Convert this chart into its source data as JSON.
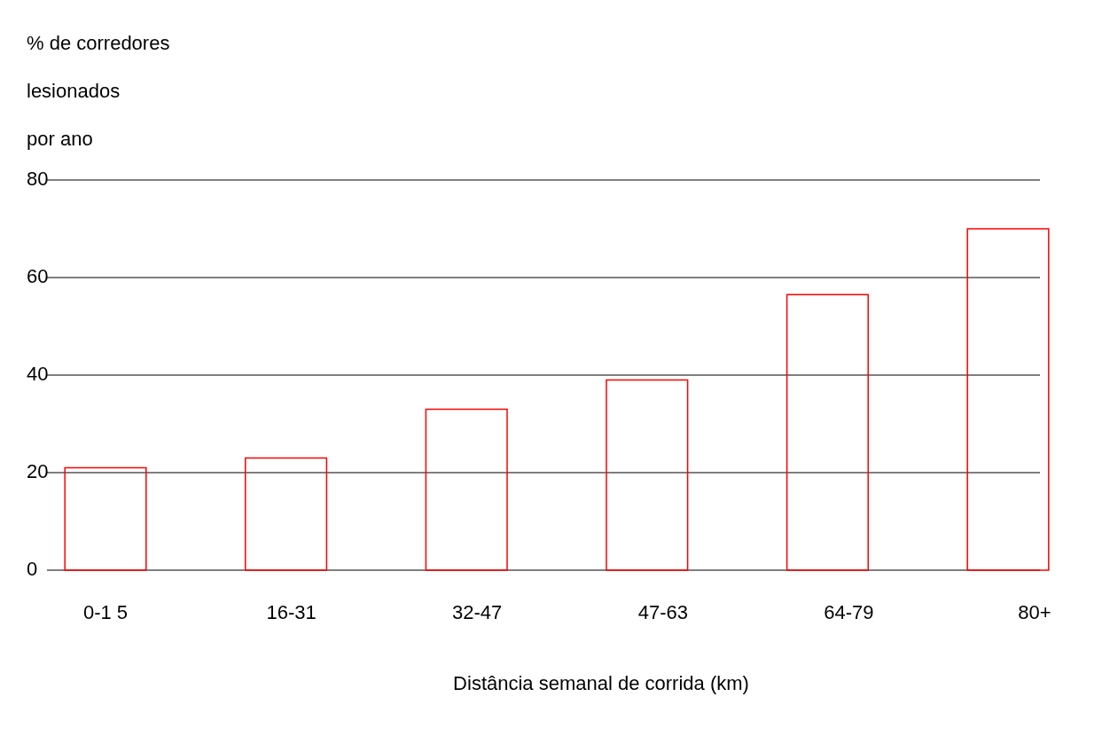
{
  "chart_data": {
    "type": "bar",
    "ylabel": "% de corredores\nlesionados\npor ano",
    "xlabel": "Distância semanal de corrida (km)",
    "categories": [
      "0-1 5",
      "16-31",
      "32-47",
      "47-63",
      "64-79",
      "80+"
    ],
    "values": [
      21,
      23,
      33,
      39,
      56.5,
      70
    ],
    "color": "#ff0000",
    "ylim": [
      0,
      80
    ],
    "yticks": [
      0,
      20,
      40,
      60,
      80
    ],
    "grid": "y"
  }
}
